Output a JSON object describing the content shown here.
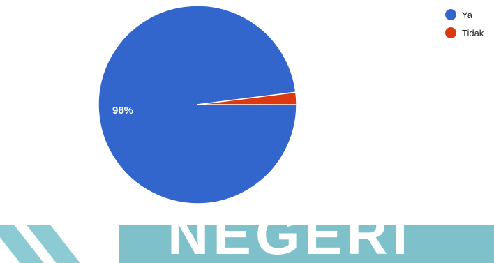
{
  "chart_data": {
    "type": "pie",
    "title": "",
    "categories": [
      "Ya",
      "Tidak"
    ],
    "values": [
      98,
      2
    ],
    "colors": [
      "#3366cc",
      "#dc3912"
    ],
    "slice_labels": [
      "98%",
      ""
    ],
    "legend_position": "right"
  },
  "banner": {
    "text": "NEGERI",
    "color": "#7fc1cb"
  }
}
